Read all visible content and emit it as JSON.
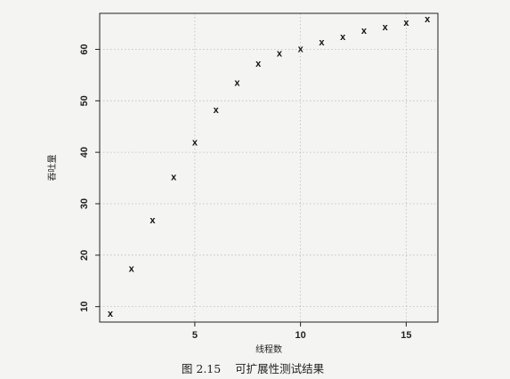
{
  "chart_data": {
    "type": "scatter",
    "title": "",
    "xlabel": "线程数",
    "ylabel": "吞吐量",
    "caption": "图 2.15    可扩展性测试结果",
    "marker": "x",
    "xlim": [
      0.5,
      16.5
    ],
    "ylim": [
      7,
      67
    ],
    "xticks": [
      5,
      10,
      15
    ],
    "yticks": [
      10,
      20,
      30,
      40,
      50,
      60
    ],
    "grid": "dotted",
    "legend": "none",
    "x": [
      1,
      2,
      3,
      4,
      5,
      6,
      7,
      8,
      9,
      10,
      11,
      12,
      13,
      14,
      15,
      16
    ],
    "y": [
      8.7,
      17.5,
      26.9,
      35.3,
      42.0,
      48.3,
      53.6,
      57.3,
      59.3,
      60.2,
      61.5,
      62.5,
      63.7,
      64.4,
      65.3,
      66.0
    ]
  }
}
